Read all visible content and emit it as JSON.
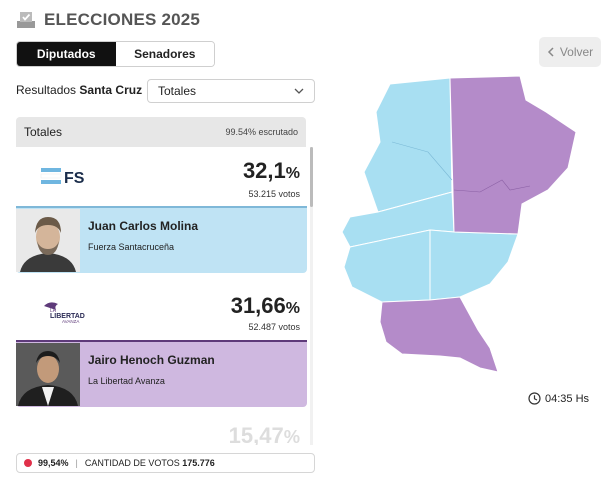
{
  "header": {
    "title": "ELECCIONES 2025",
    "icon": "ballot-icon"
  },
  "tabs": [
    {
      "label": "Diputados",
      "active": true
    },
    {
      "label": "Senadores",
      "active": false
    }
  ],
  "back": {
    "label": "Volver",
    "icon": "chevron-left-icon"
  },
  "results": {
    "prefix": "Resultados",
    "province": "Santa Cruz"
  },
  "filter": {
    "selected": "Totales",
    "icon": "chevron-down-icon"
  },
  "summary": {
    "label": "Totales",
    "scrutiny": "99.54% escrutado"
  },
  "parties": [
    {
      "logo_text": "FS",
      "percent": "32,1",
      "percent_sign": "%",
      "votes": "53.215 votos",
      "candidate": "Juan Carlos Molina",
      "party_name": "Fuerza Santacruceña",
      "color": "#bfe3f4",
      "accent": "#7fb8d8"
    },
    {
      "logo_text": "LIBERTAD",
      "logo_sub": "AVANZA",
      "logo_prefix": "LA",
      "percent": "31,66",
      "percent_sign": "%",
      "votes": "52.487 votos",
      "candidate": "Jairo Henoch Guzman",
      "party_name": "La Libertad Avanza",
      "color": "#cfb8e0",
      "accent": "#5e3a7a"
    }
  ],
  "faded_party": {
    "percent": "15,47",
    "percent_sign": "%"
  },
  "footer": {
    "percent": "99,54%",
    "label": "CANTIDAD DE VOTOS",
    "value": "175.776",
    "dot_color": "#e0304a"
  },
  "time": {
    "value": "04:35 Hs",
    "icon": "clock-icon"
  },
  "map": {
    "colors": {
      "light_blue": "#a8dff2",
      "purple": "#b48bc9"
    }
  }
}
